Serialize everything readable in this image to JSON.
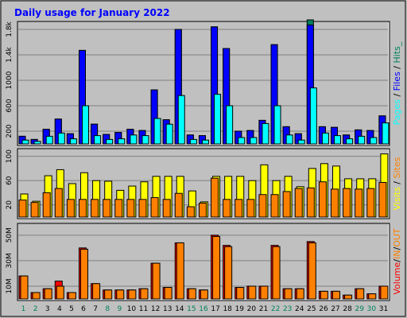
{
  "chart_data": [
    {
      "type": "bar",
      "title": "Daily usage for January 2022",
      "panel": "hits-files-pages",
      "y_ticks": [
        "200",
        "600",
        "1000",
        "1.4k",
        "1.8k"
      ],
      "ylim": [
        0,
        1900
      ],
      "categories": [
        "1",
        "2",
        "3",
        "4",
        "5",
        "6",
        "7",
        "8",
        "9",
        "10",
        "11",
        "12",
        "13",
        "14",
        "15",
        "16",
        "17",
        "18",
        "19",
        "20",
        "21",
        "22",
        "23",
        "24",
        "25",
        "26",
        "27",
        "28",
        "29",
        "30",
        "31"
      ],
      "weekend_days": [
        "1",
        "2",
        "8",
        "9",
        "15",
        "16",
        "22",
        "23",
        "29",
        "30"
      ],
      "series": [
        {
          "name": "Hits",
          "color": "#00805c",
          "values": [
            120,
            70,
            230,
            390,
            160,
            1470,
            310,
            150,
            180,
            230,
            210,
            850,
            380,
            1800,
            140,
            130,
            1840,
            1500,
            200,
            210,
            370,
            1560,
            270,
            160,
            1950,
            270,
            260,
            140,
            220,
            210,
            440
          ]
        },
        {
          "name": "Files",
          "color": "#0000ff",
          "values": [
            120,
            70,
            230,
            390,
            160,
            1470,
            310,
            150,
            180,
            230,
            210,
            850,
            380,
            1800,
            140,
            130,
            1840,
            1500,
            200,
            210,
            370,
            1560,
            270,
            160,
            1870,
            270,
            260,
            140,
            220,
            210,
            440
          ]
        },
        {
          "name": "Pages",
          "color": "#00ffff",
          "values": [
            60,
            40,
            120,
            170,
            80,
            600,
            130,
            70,
            80,
            140,
            130,
            400,
            310,
            760,
            70,
            60,
            780,
            600,
            100,
            100,
            320,
            600,
            140,
            60,
            880,
            170,
            130,
            80,
            120,
            100,
            330
          ]
        }
      ],
      "legend": [
        {
          "text": "Pages",
          "color": "#00ffff"
        },
        {
          "text": " / ",
          "color": "#000000"
        },
        {
          "text": "Files",
          "color": "#0000ff"
        },
        {
          "text": " / ",
          "color": "#000000"
        },
        {
          "text": "Hits",
          "color": "#00805c"
        },
        {
          "text": "_",
          "color": "#00805c"
        }
      ]
    },
    {
      "type": "bar",
      "panel": "visits-sites",
      "y_ticks": [
        "20",
        "60",
        "100"
      ],
      "ylim": [
        0,
        110
      ],
      "categories": [
        "1",
        "2",
        "3",
        "4",
        "5",
        "6",
        "7",
        "8",
        "9",
        "10",
        "11",
        "12",
        "13",
        "14",
        "15",
        "16",
        "17",
        "18",
        "19",
        "20",
        "21",
        "22",
        "23",
        "24",
        "25",
        "26",
        "27",
        "28",
        "29",
        "30",
        "31"
      ],
      "series": [
        {
          "name": "Visits",
          "color": "#ffff00",
          "values": [
            38,
            26,
            68,
            78,
            55,
            73,
            60,
            59,
            44,
            51,
            58,
            67,
            67,
            67,
            43,
            25,
            67,
            67,
            67,
            60,
            86,
            60,
            67,
            50,
            80,
            88,
            84,
            63,
            63,
            63,
            104
          ]
        },
        {
          "name": "Sites",
          "color": "#ff8000",
          "values": [
            28,
            24,
            40,
            47,
            29,
            29,
            29,
            29,
            29,
            29,
            29,
            32,
            29,
            39,
            17,
            23,
            64,
            29,
            29,
            29,
            37,
            37,
            42,
            47,
            48,
            58,
            46,
            47,
            46,
            47,
            57
          ]
        }
      ],
      "legend": [
        {
          "text": "Visits",
          "color": "#ffff00"
        },
        {
          "text": " / ",
          "color": "#000000"
        },
        {
          "text": "Sites",
          "color": "#ff8000"
        }
      ]
    },
    {
      "type": "bar",
      "panel": "volume",
      "y_ticks": [
        "10M",
        "30M",
        "50M"
      ],
      "ylim": [
        0,
        58
      ],
      "categories": [
        "1",
        "2",
        "3",
        "4",
        "5",
        "6",
        "7",
        "8",
        "9",
        "10",
        "11",
        "12",
        "13",
        "14",
        "15",
        "16",
        "17",
        "18",
        "19",
        "20",
        "21",
        "22",
        "23",
        "24",
        "25",
        "26",
        "27",
        "28",
        "29",
        "30",
        "31"
      ],
      "series": [
        {
          "name": "Volume",
          "color": "#ff0000",
          "values": [
            18,
            5,
            8,
            14,
            5,
            40,
            12,
            7,
            7,
            7,
            8,
            28,
            9,
            44,
            8,
            7,
            50,
            42,
            9,
            10,
            10,
            42,
            8,
            8,
            45,
            6,
            6,
            3,
            8,
            4,
            10
          ]
        },
        {
          "name": "IN",
          "color": "#ff8000",
          "values": [
            18,
            5,
            8,
            10,
            5,
            39,
            12,
            7,
            7,
            7,
            8,
            28,
            9,
            44,
            8,
            7,
            49,
            41,
            9,
            10,
            10,
            41,
            8,
            8,
            44,
            6,
            6,
            3,
            8,
            4,
            10
          ]
        }
      ],
      "legend": [
        {
          "text": "Volume",
          "color": "#ff0000"
        },
        {
          "text": "/",
          "color": "#000000"
        },
        {
          "text": "IN",
          "color": "#ff8000"
        },
        {
          "text": "/",
          "color": "#000000"
        },
        {
          "text": "OUT",
          "color": "#ff8000"
        }
      ]
    }
  ]
}
